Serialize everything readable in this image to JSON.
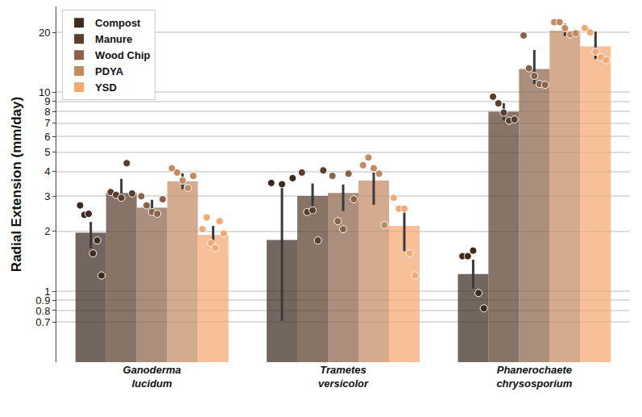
{
  "chart_data": {
    "type": "bar",
    "y_label": "Radial Extension (mm/day)",
    "categories": [
      "Ganoderma lucidum",
      "Trametes versicolor",
      "Phanerochaete chrysosporium"
    ],
    "log": "y",
    "grid": true,
    "legend": "upper left",
    "ylim": [
      0.44,
      27
    ],
    "yticks": [
      0.7,
      0.8,
      0.9,
      1,
      2,
      3,
      4,
      5,
      6,
      7,
      8,
      9,
      10,
      20
    ],
    "series": [
      {
        "name": "Compost",
        "color": "#3d2b20",
        "values": [
          1.97,
          1.81,
          1.22
        ],
        "error_plus": [
          0.26,
          1.63,
          0.22
        ],
        "error_minus": [
          0.33,
          1.1,
          0.19
        ],
        "points": [
          [
            2.7,
            2.42,
            2.45,
            1.55,
            1.8,
            1.2
          ],
          [
            3.5,
            3.45,
            3.7
          ],
          [
            1.5,
            1.5,
            1.6,
            0.98,
            0.82
          ]
        ]
      },
      {
        "name": "Manure",
        "color": "#5a3e2c",
        "values": [
          3.12,
          3.01,
          7.98
        ],
        "error_plus": [
          0.55,
          0.47,
          0.83
        ],
        "error_minus": [
          0.3,
          0.59,
          0.76
        ],
        "points": [
          [
            3.15,
            3.05,
            2.95,
            4.4,
            3.1
          ],
          [
            3.95,
            2.5,
            2.55,
            1.8,
            4.05
          ],
          [
            9.5,
            8.8,
            7.9,
            7.2,
            7.3
          ]
        ]
      },
      {
        "name": "Wood Chip",
        "color": "#8a6248",
        "values": [
          2.63,
          3.12,
          13.1
        ],
        "error_plus": [
          0.25,
          0.32,
          3.2
        ],
        "error_minus": [
          0.16,
          0.59,
          2.1
        ],
        "points": [
          [
            3.0,
            2.7,
            2.5,
            2.45,
            2.9
          ],
          [
            3.8,
            2.25,
            2.05,
            3.9,
            2.9
          ],
          [
            19.3,
            13.2,
            12.1,
            11.0,
            10.9
          ]
        ]
      },
      {
        "name": "PDYA",
        "color": "#c48a62",
        "values": [
          3.57,
          3.6,
          20.4
        ],
        "error_plus": [
          0.34,
          0.35,
          1.7
        ],
        "error_minus": [
          0.31,
          0.88,
          1.2
        ],
        "points": [
          [
            4.15,
            3.95,
            3.6,
            3.3,
            3.8
          ],
          [
            4.3,
            4.7,
            4.15,
            3.9,
            2.15
          ],
          [
            22.5,
            22.5,
            21.0,
            19.5,
            19.8
          ]
        ]
      },
      {
        "name": "YSD",
        "color": "#f5a870",
        "values": [
          1.92,
          2.13,
          17.0
        ],
        "error_plus": [
          0.21,
          0.54,
          3.2
        ],
        "error_minus": [
          0.22,
          0.54,
          2.3
        ],
        "points": [
          [
            2.05,
            2.35,
            1.75,
            1.65,
            2.25,
            1.95
          ],
          [
            2.95,
            2.6,
            2.6,
            1.55,
            1.2
          ],
          [
            21.0,
            20.0,
            16.0,
            15.0,
            14.5
          ]
        ]
      }
    ]
  }
}
